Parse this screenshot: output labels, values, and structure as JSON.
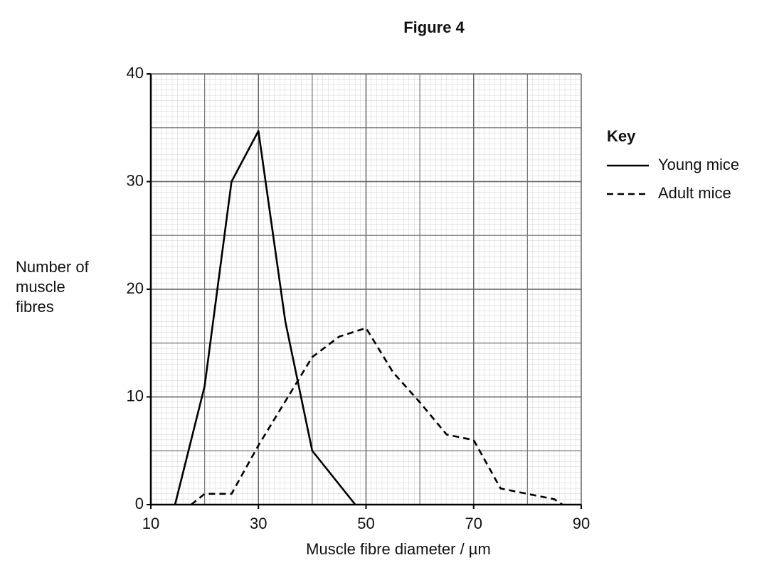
{
  "chart_data": {
    "type": "line",
    "title": "Figure 4",
    "x_label": "Muscle fibre diameter / µm",
    "y_label": "Number of muscle fibres",
    "legend_title": "Key",
    "legend_position": "right",
    "series": [
      {
        "name": "Young mice",
        "color": "#000000",
        "line_style": "solid",
        "x": [
          14.5,
          20,
          25,
          30,
          35,
          40,
          48
        ],
        "values": [
          0,
          11,
          30,
          34.7,
          17,
          5,
          0
        ]
      },
      {
        "name": "Adult mice",
        "color": "#000000",
        "line_style": "dashed",
        "x": [
          17.5,
          20,
          25,
          30,
          40,
          45,
          50,
          55,
          60,
          65,
          70,
          75,
          80,
          85,
          86.5
        ],
        "values": [
          0,
          1,
          1,
          5.5,
          13.7,
          15.6,
          16.4,
          12.3,
          9.5,
          6.5,
          6,
          1.5,
          1,
          0.5,
          0
        ]
      }
    ],
    "xlim": [
      10,
      90
    ],
    "xticks": [
      10,
      30,
      50,
      70,
      90
    ],
    "ylim": [
      0,
      40
    ],
    "yticks": [
      0,
      10,
      20,
      30,
      40
    ],
    "grid": true
  }
}
